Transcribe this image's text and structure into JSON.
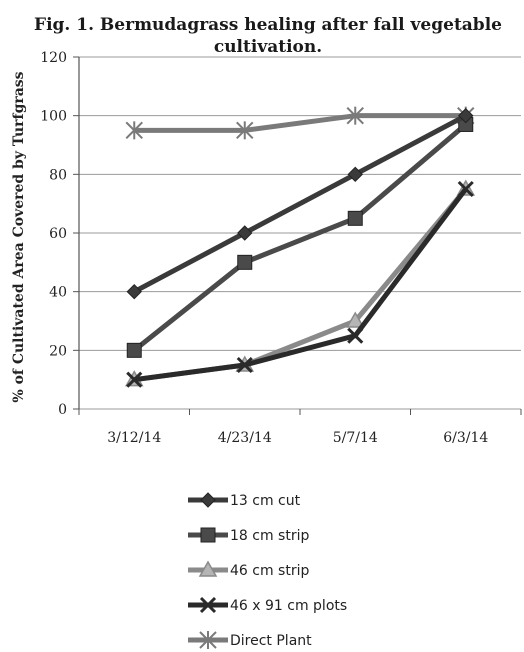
{
  "chart_data": {
    "type": "line",
    "title_line1": "Fig. 1.  Bermudagrass healing after fall vegetable",
    "title_line2": "cultivation.",
    "ylabel": "% of Cultivated Area Covered by Turfgrass",
    "xlabel": "",
    "categories": [
      "3/12/14",
      "4/23/14",
      "5/7/14",
      "6/3/14"
    ],
    "ylim": [
      0,
      120
    ],
    "yticks": [
      0,
      20,
      40,
      60,
      80,
      100,
      120
    ],
    "grid": "horizontal",
    "legend_position": "bottom",
    "series": [
      {
        "name": "13 cm cut",
        "values": [
          40,
          60,
          80,
          100
        ],
        "marker": "diamond",
        "color": "#3a3a3a"
      },
      {
        "name": "18 cm strip",
        "values": [
          20,
          50,
          65,
          97
        ],
        "marker": "square",
        "color": "#4a4a4a"
      },
      {
        "name": "46 cm  strip",
        "values": [
          10,
          15,
          30,
          75
        ],
        "marker": "triangle",
        "color": "#8a8a8a"
      },
      {
        "name": "46 x 91 cm plots",
        "values": [
          10,
          15,
          25,
          75
        ],
        "marker": "x",
        "color": "#2a2a2a"
      },
      {
        "name": "Direct Plant",
        "values": [
          95,
          95,
          100,
          100
        ],
        "marker": "star",
        "color": "#7a7a7a"
      }
    ]
  }
}
